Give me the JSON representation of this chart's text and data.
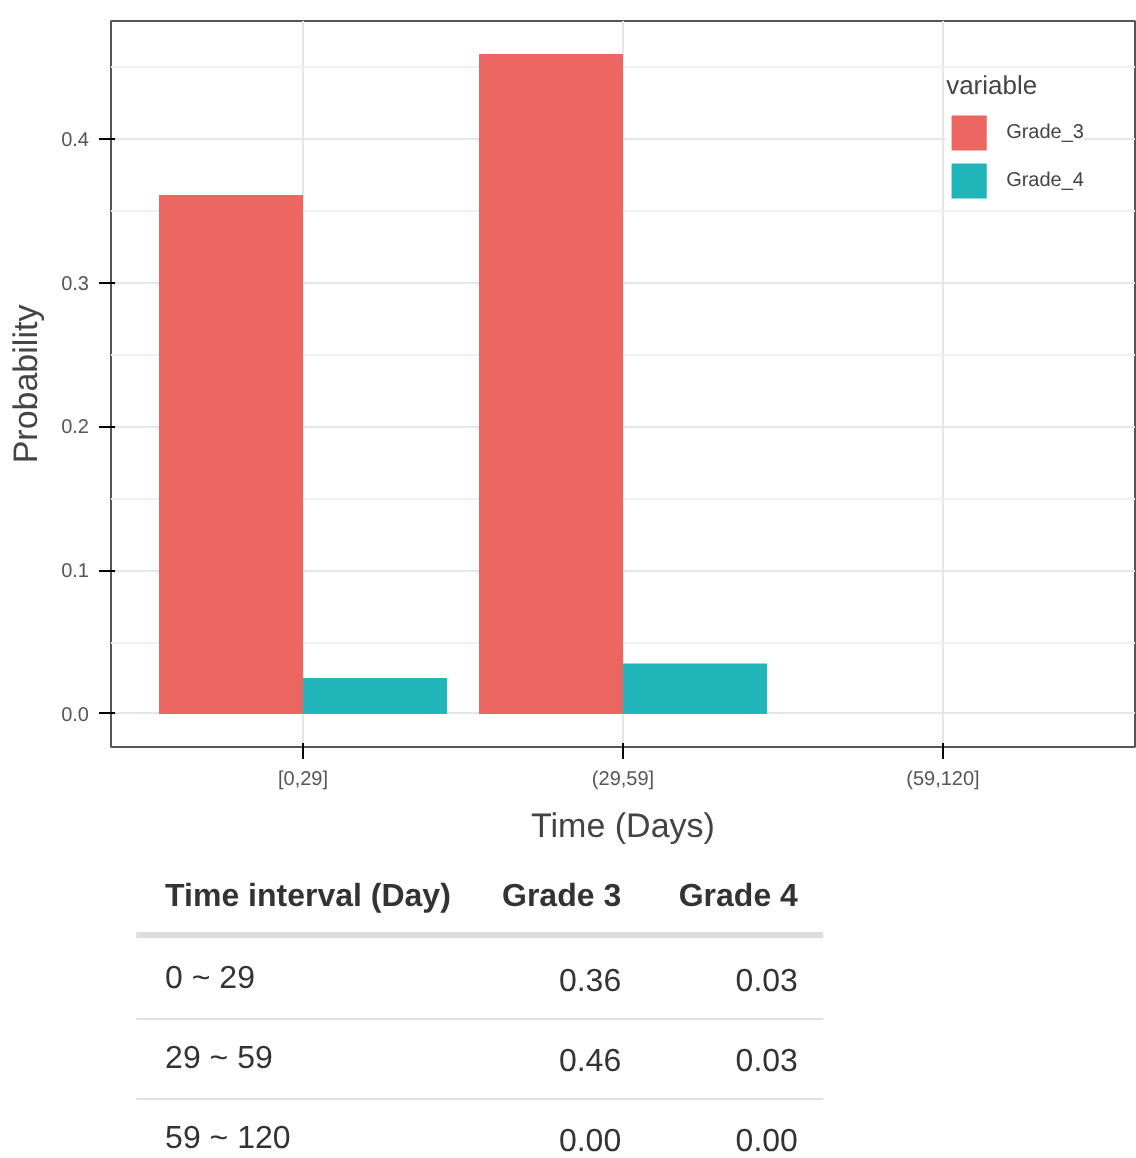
{
  "chart_data": {
    "type": "bar",
    "xlabel": "Time (Days)",
    "ylabel": "Probability",
    "legend_title": "variable",
    "categories": [
      "[0,29]",
      "(29,59]",
      "(59,120]"
    ],
    "series": [
      {
        "name": "Grade_3",
        "color": "#ec6662",
        "values": [
          0.361,
          0.459,
          0
        ]
      },
      {
        "name": "Grade_4",
        "color": "#20b5b9",
        "values": [
          0.025,
          0.035,
          0
        ]
      }
    ],
    "ylim": [
      -0.023,
      0.482
    ],
    "yticks": [
      {
        "value": 0,
        "label": "0.0"
      },
      0.1,
      0.2,
      0.3,
      0.4
    ],
    "grid": true,
    "legend": "top right",
    "annotations": [
      "Time interval (Day)",
      "Grade 3",
      "Grade 4",
      "0 ~ 29",
      "0.36",
      "0.03",
      "29 ~ 59",
      "0.46",
      "0.03",
      "59 ~ 120",
      "0.00",
      "0.00"
    ]
  }
}
